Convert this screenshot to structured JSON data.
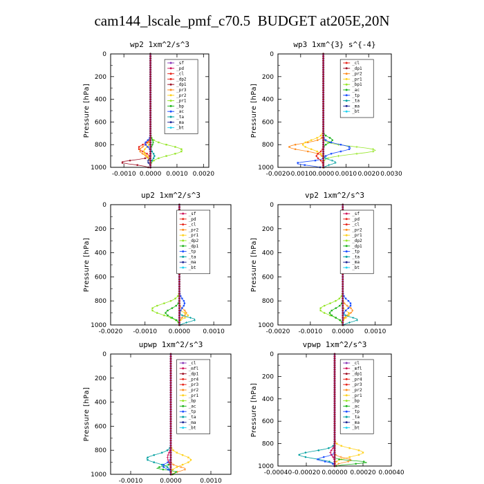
{
  "title": "cam144_lscale_pmf_c70.5  BUDGET at205E,20N",
  "colors": {
    "ltgray": "#9aa4b6",
    "purple": "#8a3bb8",
    "darkred": "#a01428",
    "red": "#e8281e",
    "crimson": "#d0145a",
    "orange": "#ff8c1e",
    "yellow": "#ffd21e",
    "lgreen": "#96e628",
    "green": "#1eb41e",
    "navy": "#1e2896",
    "blue": "#1e50ff",
    "teal": "#00a0a0",
    "cyan": "#1ed2f0"
  },
  "chart_data": [
    {
      "type": "line",
      "name": "wp2",
      "title": "wp2  1xm^2/s^3",
      "ylabel": "Pressure [hPa]",
      "xlabel": "",
      "xlim": [
        -0.0015,
        0.0022
      ],
      "ylim": [
        1000,
        0
      ],
      "xticks": [
        -0.001,
        0.0,
        0.001,
        0.002
      ],
      "xtick_labels": [
        "-0.0010",
        "0.0000",
        "0.0010",
        "0.0020"
      ],
      "yticks": [
        0,
        200,
        400,
        600,
        800,
        1000
      ],
      "legend": [
        "_sf",
        "_pd",
        "_cl",
        "_dp2",
        "_dp1",
        "_pr3",
        "_pr2",
        "_pr1",
        "_bp",
        "_ac",
        "_ta",
        "_ma",
        "_bt"
      ],
      "legend_colors": [
        "purple",
        "crimson",
        "red",
        "red",
        "darkred",
        "orange",
        "yellow",
        "lgreen",
        "green",
        "blue",
        "teal",
        "navy",
        "cyan"
      ],
      "series": [
        {
          "name": "_dp1",
          "color": "darkred",
          "peaks": [
            [
              960,
              -0.0012,
              60
            ]
          ]
        },
        {
          "name": "_dp2",
          "color": "red",
          "peaks": [
            [
              830,
              -0.00045,
              90
            ]
          ]
        },
        {
          "name": "_pr3",
          "color": "orange",
          "peaks": [
            [
              850,
              -0.0004,
              110
            ]
          ]
        },
        {
          "name": "_pr2",
          "color": "yellow",
          "peaks": [
            [
              860,
              -0.00025,
              100
            ]
          ]
        },
        {
          "name": "_pr1",
          "color": "lgreen",
          "peaks": [
            [
              850,
              0.0012,
              120
            ]
          ]
        },
        {
          "name": "_bp",
          "color": "green",
          "peaks": [
            [
              780,
              0.0001,
              80
            ]
          ]
        },
        {
          "name": "_ac",
          "color": "blue",
          "peaks": [
            [
              790,
              -0.0002,
              70
            ]
          ]
        },
        {
          "name": "_ta",
          "color": "teal",
          "peaks": [
            [
              900,
              0.00015,
              80
            ]
          ]
        },
        {
          "name": "_ma",
          "color": "navy",
          "peaks": [
            [
              950,
              -0.0001,
              50
            ]
          ]
        },
        {
          "name": "_sf",
          "color": "purple",
          "peaks": []
        }
      ]
    },
    {
      "type": "line",
      "name": "wp3",
      "title": "wp3  1xm^{3} s^{-4}",
      "ylabel": "Pressure [hPa]",
      "xlabel": "",
      "xlim": [
        -0.002,
        0.003
      ],
      "ylim": [
        1000,
        0
      ],
      "xticks": [
        -0.002,
        -0.001,
        0.0,
        0.001,
        0.002,
        0.003
      ],
      "xtick_labels": [
        "-0.0020",
        "-0.0010",
        "0.0000",
        "0.0010",
        "0.0020",
        "0.0030"
      ],
      "yticks": [
        0,
        200,
        400,
        600,
        800,
        1000
      ],
      "legend": [
        "_cl",
        "_dp1",
        "_pr2",
        "_pr1",
        "_bp1",
        "_ac",
        "_tp",
        "_ta",
        "_ma",
        "_bt"
      ],
      "legend_colors": [
        "red",
        "darkred",
        "orange",
        "yellow",
        "lgreen",
        "green",
        "blue",
        "teal",
        "navy",
        "cyan"
      ],
      "series": [
        {
          "name": "_pr2",
          "color": "orange",
          "peaks": [
            [
              820,
              -0.0015,
              90
            ]
          ]
        },
        {
          "name": "_pr1",
          "color": "yellow",
          "peaks": [
            [
              800,
              -0.0009,
              110
            ]
          ]
        },
        {
          "name": "_bp1",
          "color": "lgreen",
          "peaks": [
            [
              850,
              0.0023,
              90
            ]
          ]
        },
        {
          "name": "_ac",
          "color": "green",
          "peaks": [
            [
              760,
              0.0004,
              70
            ]
          ]
        },
        {
          "name": "_tp",
          "color": "blue",
          "peaks": [
            [
              830,
              0.0012,
              90
            ],
            [
              970,
              -0.0015,
              50
            ]
          ]
        },
        {
          "name": "_ta",
          "color": "teal",
          "peaks": [
            [
              960,
              0.0006,
              60
            ]
          ]
        },
        {
          "name": "_cl",
          "color": "red",
          "peaks": [
            [
              900,
              -0.0003,
              80
            ]
          ]
        },
        {
          "name": "_dp1",
          "color": "darkred",
          "peaks": []
        }
      ]
    },
    {
      "type": "line",
      "name": "up2",
      "title": "up2  1xm^2/s^3",
      "ylabel": "Pressure [hPa]",
      "xlabel": "",
      "xlim": [
        -0.002,
        0.0015
      ],
      "ylim": [
        1000,
        0
      ],
      "xticks": [
        -0.002,
        -0.001,
        0.0,
        0.001
      ],
      "xtick_labels": [
        "-0.0020",
        "-0.0010",
        "0.0000",
        "0.0010"
      ],
      "yticks": [
        0,
        200,
        400,
        600,
        800,
        1000
      ],
      "legend": [
        "_sf",
        "_pd",
        "_cl",
        "_pr2",
        "_pr1",
        "_dp2",
        "_dp1",
        "_tp",
        "_ta",
        "_ma",
        "_bt"
      ],
      "legend_colors": [
        "crimson",
        "red",
        "red",
        "orange",
        "yellow",
        "lgreen",
        "green",
        "blue",
        "teal",
        "navy",
        "cyan"
      ],
      "series": [
        {
          "name": "_dp2",
          "color": "lgreen",
          "peaks": [
            [
              870,
              -0.0008,
              130
            ]
          ]
        },
        {
          "name": "_dp1",
          "color": "green",
          "peaks": [
            [
              900,
              -0.0004,
              100
            ]
          ]
        },
        {
          "name": "_pr2",
          "color": "orange",
          "peaks": [
            [
              900,
              0.0002,
              80
            ]
          ]
        },
        {
          "name": "_pr1",
          "color": "yellow",
          "peaks": [
            [
              920,
              0.00025,
              60
            ]
          ]
        },
        {
          "name": "_tp",
          "color": "blue",
          "peaks": [
            [
              820,
              0.00015,
              100
            ]
          ]
        },
        {
          "name": "_ta",
          "color": "teal",
          "peaks": [
            [
              960,
              0.0005,
              60
            ]
          ]
        },
        {
          "name": "_pd",
          "color": "red",
          "peaks": []
        }
      ]
    },
    {
      "type": "line",
      "name": "vp2",
      "title": "vp2  1xm^2/s^3",
      "ylabel": "Pressure [hPa]",
      "xlabel": "",
      "xlim": [
        -0.002,
        0.0015
      ],
      "ylim": [
        1000,
        0
      ],
      "xticks": [
        -0.002,
        -0.001,
        0.0,
        0.001
      ],
      "xtick_labels": [
        "-0.0020",
        "-0.0010",
        "0.0000",
        "0.0010"
      ],
      "yticks": [
        0,
        200,
        400,
        600,
        800,
        1000
      ],
      "legend": [
        "_sf",
        "_pd",
        "_cl",
        "_pr2",
        "_pr1",
        "_dp2",
        "_dp1",
        "_tp",
        "_ta",
        "_ma",
        "_bt"
      ],
      "legend_colors": [
        "crimson",
        "red",
        "red",
        "orange",
        "yellow",
        "lgreen",
        "green",
        "blue",
        "teal",
        "navy",
        "cyan"
      ],
      "series": [
        {
          "name": "_dp2",
          "color": "lgreen",
          "peaks": [
            [
              870,
              -0.0007,
              130
            ]
          ]
        },
        {
          "name": "_dp1",
          "color": "green",
          "peaks": [
            [
              900,
              -0.0004,
              100
            ]
          ]
        },
        {
          "name": "_pr2",
          "color": "orange",
          "peaks": [
            [
              880,
              0.0003,
              90
            ]
          ]
        },
        {
          "name": "_pr1",
          "color": "yellow",
          "peaks": [
            [
              910,
              0.0002,
              70
            ]
          ]
        },
        {
          "name": "_tp",
          "color": "blue",
          "peaks": [
            [
              830,
              0.00025,
              100
            ]
          ]
        },
        {
          "name": "_ta",
          "color": "teal",
          "peaks": [
            [
              960,
              0.0005,
              60
            ]
          ]
        },
        {
          "name": "_pd",
          "color": "red",
          "peaks": []
        }
      ]
    },
    {
      "type": "line",
      "name": "upwp",
      "title": "upwp  1xm^2/s^3",
      "ylabel": "Pressure [hPa]",
      "xlabel": "",
      "xlim": [
        -0.0015,
        0.0015
      ],
      "ylim": [
        1000,
        0
      ],
      "xticks": [
        -0.001,
        0.0,
        0.001
      ],
      "xtick_labels": [
        "-0.0010",
        "0.0000",
        "0.0010"
      ],
      "yticks": [
        0,
        200,
        400,
        600,
        800,
        1000
      ],
      "legend": [
        "_cl",
        "_mfl",
        "_dp1",
        "_pr4",
        "_pr3",
        "_pr2",
        "_pr1",
        "_bp",
        "_ac",
        "_tp",
        "_ta",
        "_ma",
        "_bt"
      ],
      "legend_colors": [
        "purple",
        "crimson",
        "darkred",
        "red",
        "red",
        "orange",
        "yellow",
        "lgreen",
        "green",
        "blue",
        "teal",
        "navy",
        "cyan"
      ],
      "series": [
        {
          "name": "_bp",
          "color": "teal",
          "peaks": [
            [
              870,
              -0.0006,
              100
            ]
          ]
        },
        {
          "name": "_pr2",
          "color": "yellow",
          "peaks": [
            [
              880,
              0.0005,
              110
            ]
          ]
        },
        {
          "name": "_pr1",
          "color": "orange",
          "peaks": [
            [
              960,
              0.0004,
              60
            ]
          ]
        },
        {
          "name": "_ac",
          "color": "green",
          "peaks": [
            [
              960,
              -0.0009,
              50
            ],
            [
              970,
              0.0008,
              50
            ]
          ]
        },
        {
          "name": "_tp",
          "color": "blue",
          "peaks": [
            [
              930,
              -0.0002,
              60
            ]
          ]
        },
        {
          "name": "_mfl",
          "color": "crimson",
          "peaks": [
            [
              860,
              -8e-05,
              100
            ]
          ]
        },
        {
          "name": "_cl",
          "color": "purple",
          "peaks": []
        }
      ]
    },
    {
      "type": "line",
      "name": "vpwp",
      "title": "vpwp  1xm^2/s^3",
      "ylabel": "Pressure [hPa]",
      "xlabel": "",
      "xlim": [
        -0.0004,
        0.0004
      ],
      "ylim": [
        1000,
        0
      ],
      "xticks": [
        -0.0004,
        -0.0002,
        0.0,
        0.0002,
        0.0004
      ],
      "xtick_labels": [
        "-0.00040",
        "-0.00020",
        "0.00000",
        "0.00020",
        "0.00040"
      ],
      "yticks": [
        0,
        200,
        400,
        600,
        800,
        1000
      ],
      "legend": [
        "_cl",
        "_mfl",
        "_dp1",
        "_pr4",
        "_pr3",
        "_pr2",
        "_pr1",
        "_bp",
        "_ac",
        "_tp",
        "_ta",
        "_ma",
        "_bt"
      ],
      "legend_colors": [
        "purple",
        "crimson",
        "darkred",
        "red",
        "red",
        "orange",
        "yellow",
        "lgreen",
        "green",
        "blue",
        "teal",
        "navy",
        "cyan"
      ],
      "series": [
        {
          "name": "_bp",
          "color": "teal",
          "peaks": [
            [
              900,
              -0.00025,
              90
            ]
          ]
        },
        {
          "name": "_pr2",
          "color": "yellow",
          "peaks": [
            [
              880,
              0.0002,
              100
            ]
          ]
        },
        {
          "name": "_pr1",
          "color": "orange",
          "peaks": [
            [
              950,
              0.00012,
              60
            ]
          ]
        },
        {
          "name": "_ac",
          "color": "green",
          "peaks": [
            [
              970,
              0.0003,
              40
            ]
          ]
        },
        {
          "name": "_tp",
          "color": "blue",
          "peaks": [
            [
              940,
              -0.00012,
              60
            ]
          ]
        },
        {
          "name": "_mfl",
          "color": "crimson",
          "peaks": [
            [
              880,
              -3e-05,
              80
            ]
          ]
        },
        {
          "name": "_cl",
          "color": "purple",
          "peaks": []
        }
      ]
    }
  ]
}
